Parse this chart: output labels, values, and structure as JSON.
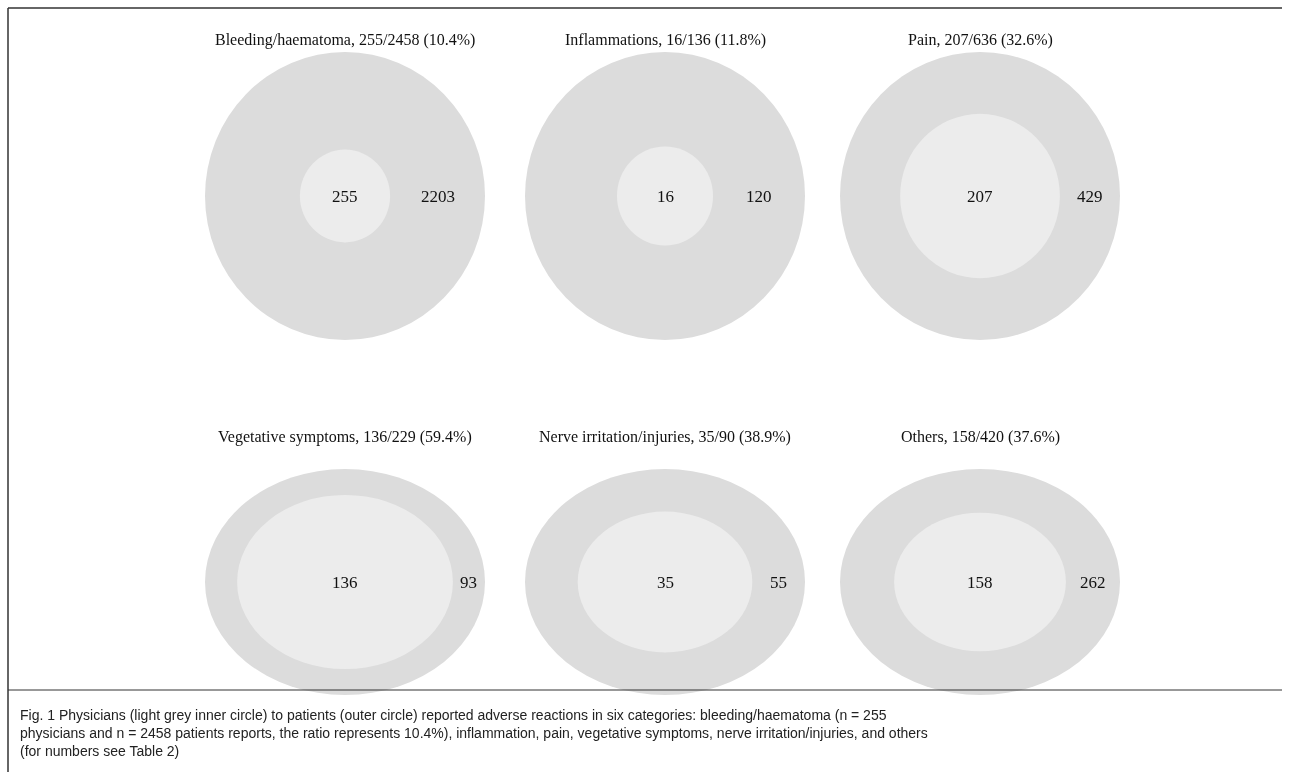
{
  "chart_data": [
    {
      "type": "other",
      "title": "Bleeding/haematoma, 255/2458 (10.4%)",
      "values": [
        255,
        2203
      ],
      "colors": [
        "#ececec",
        "#dcdcdc"
      ],
      "data_labels": true
    },
    {
      "type": "other",
      "title": "Inflammations, 16/136 (11.8%)",
      "values": [
        16,
        120
      ],
      "colors": [
        "#ececec",
        "#dcdcdc"
      ],
      "data_labels": true
    },
    {
      "type": "other",
      "title": "Pain, 207/636 (32.6%)",
      "values": [
        207,
        429
      ],
      "colors": [
        "#ececec",
        "#dcdcdc"
      ],
      "data_labels": true
    },
    {
      "type": "other",
      "title": "Vegetative symptoms, 136/229 (59.4%)",
      "values": [
        136,
        93
      ],
      "colors": [
        "#ececec",
        "#dcdcdc"
      ],
      "data_labels": true
    },
    {
      "type": "other",
      "title": "Nerve irritation/injuries, 35/90 (38.9%)",
      "values": [
        35,
        55
      ],
      "colors": [
        "#ececec",
        "#dcdcdc"
      ],
      "data_labels": true
    },
    {
      "type": "other",
      "title": "Others, 158/420 (37.6%)",
      "values": [
        158,
        262
      ],
      "colors": [
        "#ececec",
        "#dcdcdc"
      ],
      "data_labels": true,
      "annotations": [
        "Fig. 1 Physicians (light grey inner circle) to patients (outer circle) reported adverse reactions in six categories: bleeding/haematoma (n = 255 physicians and n = 2458 patients reports, the ratio represents 10.4%), inflammation, pain, vegetative symptoms, nerve irritation/injuries, and others (for numbers see Table 2)"
      ]
    }
  ]
}
